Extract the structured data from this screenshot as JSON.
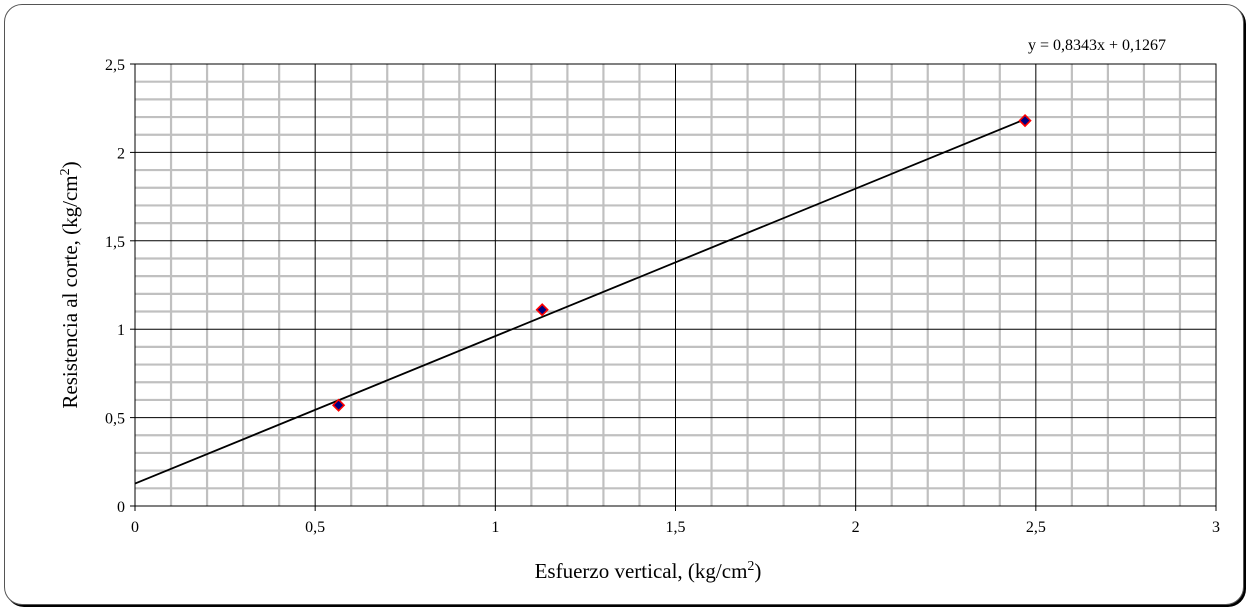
{
  "chart_data": {
    "type": "scatter",
    "title": "",
    "xlabel": {
      "main": "Esfuerzo vertical,  (kg/cm",
      "sup": "2",
      "close": ")"
    },
    "ylabel": {
      "main": "Resistencia al corte,  (kg/cm",
      "sup": "2",
      "close": ")"
    },
    "xlim": [
      0,
      3
    ],
    "ylim": [
      0,
      2.5
    ],
    "x_ticks": [
      "0",
      "0,5",
      "1",
      "1,5",
      "2",
      "2,5",
      "3"
    ],
    "y_ticks": [
      "0",
      "0,5",
      "1",
      "1,5",
      "2",
      "2,5"
    ],
    "grid": true,
    "series": [
      {
        "x": [
          0.565,
          1.13,
          2.47
        ],
        "y": [
          0.57,
          1.11,
          2.18
        ]
      }
    ],
    "trendline": {
      "slope": 0.8343,
      "intercept": 0.1267,
      "x_range": [
        0,
        2.47
      ],
      "equation": "y = 0,8343x + 0,1267"
    },
    "colors": {
      "marker_fill": "#000080",
      "marker_edge": "#ff0000",
      "trendline": "#000000",
      "minor_grid": "#c0c0c0",
      "major_grid": "#000000"
    }
  }
}
